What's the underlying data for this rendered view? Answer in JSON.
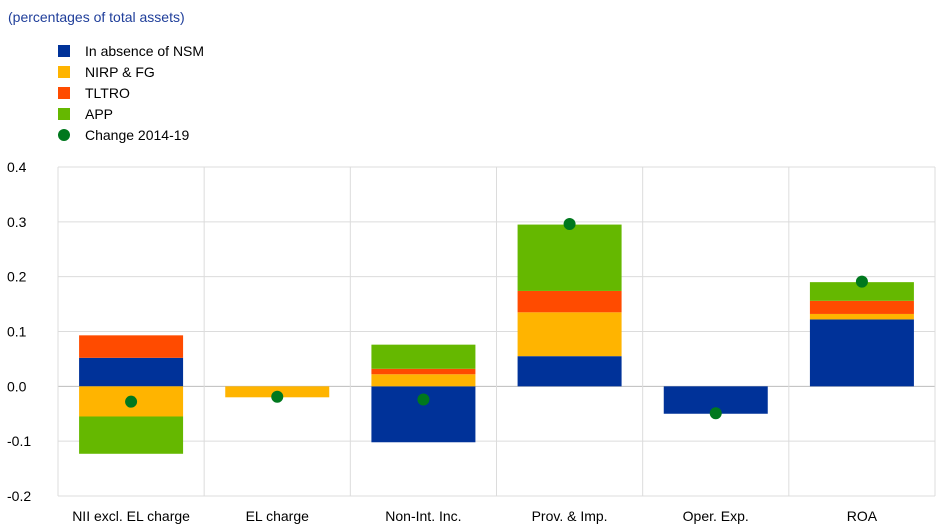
{
  "subtitle": "(percentages of total assets)",
  "chart_data": {
    "type": "bar",
    "stacked": true,
    "categories": [
      "NII excl. EL charge",
      "EL charge",
      "Non-Int. Inc.",
      "Prov. & Imp.",
      "Oper. Exp.",
      "ROA"
    ],
    "series": [
      {
        "name": "In absence of NSM",
        "color": "#003299",
        "values": [
          0.052,
          0.0,
          -0.102,
          0.055,
          -0.05,
          0.122
        ]
      },
      {
        "name": "NIRP & FG",
        "color": "#ffb400",
        "values": [
          -0.055,
          -0.02,
          0.022,
          0.08,
          0.0,
          0.01
        ]
      },
      {
        "name": "TLTRO",
        "color": "#ff4b00",
        "values": [
          0.041,
          0.0,
          0.01,
          0.039,
          0.0,
          0.024
        ]
      },
      {
        "name": "APP",
        "color": "#65b800",
        "values": [
          -0.068,
          0.0,
          0.044,
          0.121,
          0.0,
          0.034
        ]
      }
    ],
    "markers": {
      "name": "Change 2014-19",
      "color": "#00781e",
      "values": [
        -0.028,
        -0.019,
        -0.024,
        0.296,
        -0.049,
        0.191
      ]
    },
    "ylim": [
      -0.2,
      0.4
    ],
    "yticks": [
      -0.2,
      -0.1,
      0.0,
      0.1,
      0.2,
      0.3,
      0.4
    ],
    "ytick_labels": [
      "-0.2",
      "-0.1",
      "0.0",
      "0.1",
      "0.2",
      "0.3",
      "0.4"
    ],
    "legend_position": "top-left",
    "grid": true
  }
}
